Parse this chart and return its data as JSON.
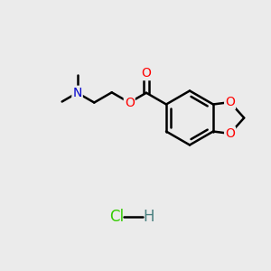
{
  "background_color": "#ebebeb",
  "figsize": [
    3.0,
    3.0
  ],
  "dpi": 100,
  "bond_color": "#000000",
  "bond_width": 1.8,
  "atom_colors": {
    "O": "#ff0000",
    "N": "#0000cc",
    "Cl": "#33cc00",
    "H": "#000000"
  },
  "font_size": 10,
  "hcl_font_size": 12,
  "xlim": [
    0,
    10
  ],
  "ylim": [
    0,
    10
  ]
}
